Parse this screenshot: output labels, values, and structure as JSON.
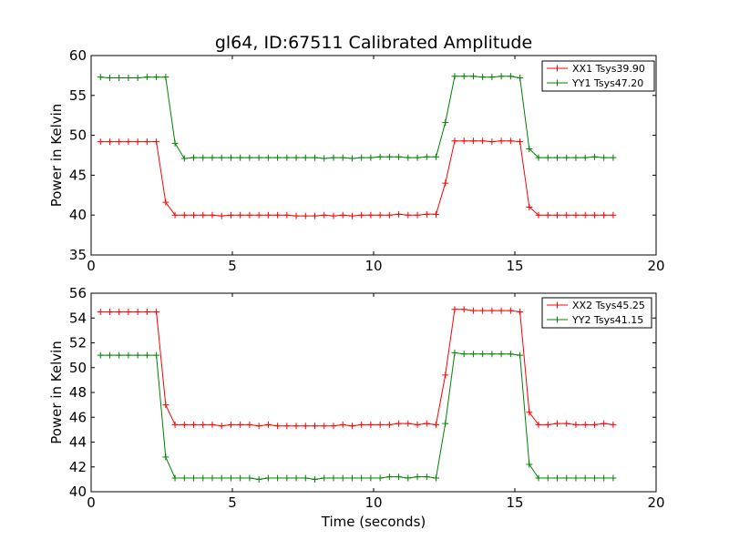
{
  "chart_data": [
    {
      "type": "line",
      "title": "gl64, ID:67511 Calibrated Amplitude",
      "xlabel": "",
      "ylabel": "Power in Kelvin",
      "xlim": [
        0,
        20
      ],
      "ylim": [
        35,
        60
      ],
      "xticks": [
        "0",
        "5",
        "10",
        "15",
        "20"
      ],
      "yticks": [
        "35",
        "40",
        "45",
        "50",
        "55",
        "60"
      ],
      "legend_position": "top-right",
      "x": [
        0.33,
        0.66,
        0.99,
        1.32,
        1.65,
        1.98,
        2.31,
        2.64,
        2.97,
        3.3,
        3.63,
        3.96,
        4.29,
        4.62,
        4.95,
        5.28,
        5.61,
        5.94,
        6.27,
        6.6,
        6.93,
        7.26,
        7.59,
        7.92,
        8.25,
        8.58,
        8.91,
        9.24,
        9.57,
        9.9,
        10.23,
        10.56,
        10.89,
        11.22,
        11.55,
        11.88,
        12.21,
        12.54,
        12.87,
        13.2,
        13.53,
        13.86,
        14.19,
        14.52,
        14.85,
        15.18,
        15.51,
        15.84,
        16.17,
        16.5,
        16.83,
        17.16,
        17.49,
        17.82,
        18.15,
        18.48
      ],
      "series": [
        {
          "name": "XX1 Tsys39.90",
          "color": "#ff0000",
          "values": [
            49.2,
            49.2,
            49.2,
            49.2,
            49.2,
            49.2,
            49.2,
            41.6,
            40.0,
            40.0,
            40.0,
            40.0,
            40.0,
            39.9,
            40.0,
            40.0,
            40.0,
            40.0,
            40.0,
            40.0,
            40.0,
            39.9,
            39.9,
            39.9,
            40.0,
            39.9,
            40.0,
            39.9,
            40.0,
            40.0,
            40.0,
            40.0,
            40.1,
            40.0,
            40.0,
            40.1,
            40.1,
            44.0,
            49.3,
            49.3,
            49.3,
            49.3,
            49.2,
            49.3,
            49.3,
            49.2,
            41.0,
            40.0,
            40.0,
            40.0,
            40.0,
            40.0,
            40.0,
            40.0,
            40.0,
            40.0
          ]
        },
        {
          "name": "YY1 Tsys47.20",
          "color": "#008000",
          "values": [
            57.3,
            57.2,
            57.2,
            57.2,
            57.2,
            57.3,
            57.3,
            57.3,
            49.0,
            47.1,
            47.2,
            47.2,
            47.2,
            47.2,
            47.2,
            47.2,
            47.2,
            47.2,
            47.2,
            47.2,
            47.2,
            47.2,
            47.2,
            47.2,
            47.1,
            47.2,
            47.2,
            47.1,
            47.2,
            47.2,
            47.3,
            47.3,
            47.3,
            47.2,
            47.2,
            47.3,
            47.3,
            51.6,
            57.4,
            57.4,
            57.4,
            57.3,
            57.3,
            57.4,
            57.4,
            57.2,
            48.3,
            47.2,
            47.2,
            47.2,
            47.2,
            47.2,
            47.2,
            47.3,
            47.2,
            47.2
          ]
        }
      ]
    },
    {
      "type": "line",
      "title": "",
      "xlabel": "Time (seconds)",
      "ylabel": "Power in Kelvin",
      "xlim": [
        0,
        20
      ],
      "ylim": [
        40,
        56
      ],
      "xticks": [
        "0",
        "5",
        "10",
        "15",
        "20"
      ],
      "yticks": [
        "40",
        "42",
        "44",
        "46",
        "48",
        "50",
        "52",
        "54",
        "56"
      ],
      "legend_position": "top-right",
      "x": [
        0.33,
        0.66,
        0.99,
        1.32,
        1.65,
        1.98,
        2.31,
        2.64,
        2.97,
        3.3,
        3.63,
        3.96,
        4.29,
        4.62,
        4.95,
        5.28,
        5.61,
        5.94,
        6.27,
        6.6,
        6.93,
        7.26,
        7.59,
        7.92,
        8.25,
        8.58,
        8.91,
        9.24,
        9.57,
        9.9,
        10.23,
        10.56,
        10.89,
        11.22,
        11.55,
        11.88,
        12.21,
        12.54,
        12.87,
        13.2,
        13.53,
        13.86,
        14.19,
        14.52,
        14.85,
        15.18,
        15.51,
        15.84,
        16.17,
        16.5,
        16.83,
        17.16,
        17.49,
        17.82,
        18.15,
        18.48
      ],
      "series": [
        {
          "name": "XX2 Tsys45.25",
          "color": "#ff0000",
          "values": [
            54.5,
            54.5,
            54.5,
            54.5,
            54.5,
            54.5,
            54.5,
            47.0,
            45.4,
            45.4,
            45.4,
            45.4,
            45.4,
            45.3,
            45.4,
            45.4,
            45.4,
            45.3,
            45.4,
            45.3,
            45.3,
            45.3,
            45.3,
            45.3,
            45.3,
            45.3,
            45.4,
            45.3,
            45.4,
            45.4,
            45.4,
            45.4,
            45.5,
            45.5,
            45.4,
            45.5,
            45.4,
            49.4,
            54.7,
            54.7,
            54.6,
            54.6,
            54.6,
            54.6,
            54.6,
            54.5,
            46.4,
            45.4,
            45.4,
            45.5,
            45.5,
            45.4,
            45.4,
            45.4,
            45.5,
            45.4
          ]
        },
        {
          "name": "YY2 Tsys41.15",
          "color": "#008000",
          "values": [
            51.0,
            51.0,
            51.0,
            51.0,
            51.0,
            51.0,
            51.0,
            42.8,
            41.1,
            41.1,
            41.1,
            41.1,
            41.1,
            41.1,
            41.1,
            41.1,
            41.1,
            41.0,
            41.1,
            41.1,
            41.1,
            41.1,
            41.1,
            41.0,
            41.1,
            41.1,
            41.1,
            41.1,
            41.1,
            41.1,
            41.1,
            41.2,
            41.2,
            41.1,
            41.2,
            41.2,
            41.1,
            45.5,
            51.2,
            51.1,
            51.1,
            51.1,
            51.1,
            51.1,
            51.1,
            51.0,
            42.2,
            41.1,
            41.1,
            41.1,
            41.1,
            41.1,
            41.1,
            41.1,
            41.1,
            41.1
          ]
        }
      ]
    }
  ]
}
